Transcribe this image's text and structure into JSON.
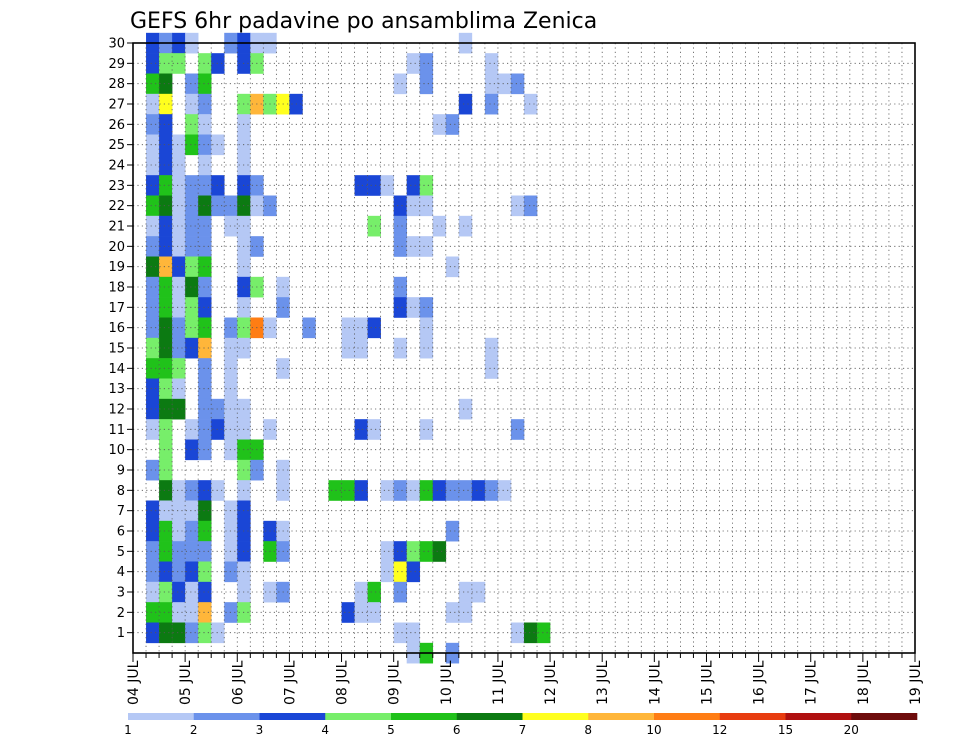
{
  "chart_data": {
    "type": "heatmap",
    "title": "GEFS 6hr padavine po ansamblima Zenica",
    "x_labels": [
      "04 JUL",
      "05 JUL",
      "06 JUL",
      "07 JUL",
      "08 JUL",
      "09 JUL",
      "10 JUL",
      "11 JUL",
      "12 JUL",
      "13 JUL",
      "14 JUL",
      "15 JUL",
      "16 JUL",
      "17 JUL",
      "18 JUL",
      "19 JUL"
    ],
    "y_labels": [
      "1",
      "2",
      "3",
      "4",
      "5",
      "6",
      "7",
      "8",
      "9",
      "10",
      "11",
      "12",
      "13",
      "14",
      "15",
      "16",
      "17",
      "18",
      "19",
      "20",
      "21",
      "22",
      "23",
      "24",
      "25",
      "26",
      "27",
      "28",
      "29",
      "30"
    ],
    "xlim": [
      0,
      60
    ],
    "ylim": [
      0,
      30
    ],
    "grid": true,
    "colorbar": {
      "labels": [
        "1",
        "2",
        "3",
        "4",
        "5",
        "6",
        "7",
        "8",
        "10",
        "12",
        "15",
        "20"
      ],
      "colors": [
        "#b5c8f5",
        "#6b92eb",
        "#1a46d6",
        "#77ee6a",
        "#20c21a",
        "#0c7a12",
        "#ffff1f",
        "#ffb63a",
        "#ff7d14",
        "#e83c10",
        "#b01010",
        "#6e0c0c"
      ]
    },
    "cells": [
      [
        1,
        30,
        3
      ],
      [
        2,
        30,
        2
      ],
      [
        3,
        30,
        3
      ],
      [
        4,
        30,
        1
      ],
      [
        7,
        30,
        2
      ],
      [
        8,
        30,
        3
      ],
      [
        9,
        30,
        1
      ],
      [
        10,
        30,
        1
      ],
      [
        25,
        30,
        1
      ],
      [
        1,
        29,
        3
      ],
      [
        2,
        29,
        4
      ],
      [
        3,
        29,
        4
      ],
      [
        5,
        29,
        4
      ],
      [
        6,
        29,
        3
      ],
      [
        8,
        29,
        3
      ],
      [
        9,
        29,
        4
      ],
      [
        21,
        29,
        1
      ],
      [
        22,
        29,
        2
      ],
      [
        27,
        29,
        1
      ],
      [
        1,
        28,
        5
      ],
      [
        2,
        28,
        6
      ],
      [
        4,
        28,
        2
      ],
      [
        5,
        28,
        5
      ],
      [
        20,
        28,
        1
      ],
      [
        22,
        28,
        2
      ],
      [
        27,
        28,
        1
      ],
      [
        28,
        28,
        1
      ],
      [
        29,
        28,
        2
      ],
      [
        1,
        27,
        1
      ],
      [
        2,
        27,
        7
      ],
      [
        4,
        27,
        1
      ],
      [
        5,
        27,
        2
      ],
      [
        8,
        27,
        4
      ],
      [
        9,
        27,
        8
      ],
      [
        10,
        27,
        4
      ],
      [
        11,
        27,
        7
      ],
      [
        12,
        27,
        3
      ],
      [
        25,
        27,
        3
      ],
      [
        27,
        27,
        2
      ],
      [
        30,
        27,
        1
      ],
      [
        1,
        26,
        2
      ],
      [
        2,
        26,
        3
      ],
      [
        4,
        26,
        4
      ],
      [
        5,
        26,
        1
      ],
      [
        8,
        26,
        1
      ],
      [
        23,
        26,
        1
      ],
      [
        24,
        26,
        2
      ],
      [
        1,
        25,
        1
      ],
      [
        2,
        25,
        3
      ],
      [
        3,
        25,
        1
      ],
      [
        4,
        25,
        5
      ],
      [
        5,
        25,
        2
      ],
      [
        6,
        25,
        1
      ],
      [
        8,
        25,
        1
      ],
      [
        1,
        24,
        1
      ],
      [
        2,
        24,
        3
      ],
      [
        3,
        24,
        1
      ],
      [
        5,
        24,
        1
      ],
      [
        8,
        24,
        1
      ],
      [
        1,
        23,
        3
      ],
      [
        2,
        23,
        5
      ],
      [
        3,
        23,
        1
      ],
      [
        4,
        23,
        2
      ],
      [
        5,
        23,
        2
      ],
      [
        6,
        23,
        3
      ],
      [
        8,
        23,
        3
      ],
      [
        9,
        23,
        2
      ],
      [
        17,
        23,
        3
      ],
      [
        18,
        23,
        3
      ],
      [
        19,
        23,
        1
      ],
      [
        21,
        23,
        3
      ],
      [
        22,
        23,
        4
      ],
      [
        1,
        22,
        5
      ],
      [
        2,
        22,
        6
      ],
      [
        3,
        22,
        1
      ],
      [
        4,
        22,
        2
      ],
      [
        5,
        22,
        6
      ],
      [
        6,
        22,
        2
      ],
      [
        7,
        22,
        2
      ],
      [
        8,
        22,
        6
      ],
      [
        9,
        22,
        1
      ],
      [
        10,
        22,
        2
      ],
      [
        20,
        22,
        3
      ],
      [
        21,
        22,
        1
      ],
      [
        22,
        22,
        1
      ],
      [
        29,
        22,
        1
      ],
      [
        30,
        22,
        2
      ],
      [
        1,
        21,
        1
      ],
      [
        2,
        21,
        3
      ],
      [
        3,
        21,
        1
      ],
      [
        4,
        21,
        2
      ],
      [
        5,
        21,
        2
      ],
      [
        7,
        21,
        1
      ],
      [
        8,
        21,
        1
      ],
      [
        18,
        21,
        4
      ],
      [
        20,
        21,
        2
      ],
      [
        23,
        21,
        1
      ],
      [
        25,
        21,
        1
      ],
      [
        1,
        20,
        2
      ],
      [
        2,
        20,
        3
      ],
      [
        3,
        20,
        1
      ],
      [
        4,
        20,
        2
      ],
      [
        5,
        20,
        2
      ],
      [
        8,
        20,
        1
      ],
      [
        9,
        20,
        2
      ],
      [
        20,
        20,
        2
      ],
      [
        21,
        20,
        1
      ],
      [
        22,
        20,
        1
      ],
      [
        1,
        19,
        6
      ],
      [
        2,
        19,
        8
      ],
      [
        3,
        19,
        3
      ],
      [
        4,
        19,
        4
      ],
      [
        5,
        19,
        5
      ],
      [
        8,
        19,
        1
      ],
      [
        24,
        19,
        1
      ],
      [
        1,
        18,
        2
      ],
      [
        2,
        18,
        5
      ],
      [
        3,
        18,
        1
      ],
      [
        4,
        18,
        6
      ],
      [
        5,
        18,
        2
      ],
      [
        8,
        18,
        3
      ],
      [
        9,
        18,
        4
      ],
      [
        11,
        18,
        1
      ],
      [
        20,
        18,
        2
      ],
      [
        1,
        17,
        2
      ],
      [
        2,
        17,
        5
      ],
      [
        3,
        17,
        1
      ],
      [
        4,
        17,
        4
      ],
      [
        5,
        17,
        3
      ],
      [
        8,
        17,
        1
      ],
      [
        11,
        17,
        2
      ],
      [
        20,
        17,
        3
      ],
      [
        21,
        17,
        1
      ],
      [
        22,
        17,
        2
      ],
      [
        1,
        16,
        2
      ],
      [
        2,
        16,
        6
      ],
      [
        3,
        16,
        2
      ],
      [
        4,
        16,
        4
      ],
      [
        5,
        16,
        5
      ],
      [
        7,
        16,
        2
      ],
      [
        8,
        16,
        4
      ],
      [
        9,
        16,
        9
      ],
      [
        10,
        16,
        1
      ],
      [
        13,
        16,
        2
      ],
      [
        16,
        16,
        1
      ],
      [
        17,
        16,
        1
      ],
      [
        18,
        16,
        3
      ],
      [
        22,
        16,
        1
      ],
      [
        1,
        15,
        4
      ],
      [
        2,
        15,
        6
      ],
      [
        3,
        15,
        2
      ],
      [
        4,
        15,
        3
      ],
      [
        5,
        15,
        8
      ],
      [
        7,
        15,
        1
      ],
      [
        8,
        15,
        1
      ],
      [
        16,
        15,
        1
      ],
      [
        17,
        15,
        1
      ],
      [
        20,
        15,
        1
      ],
      [
        22,
        15,
        1
      ],
      [
        27,
        15,
        1
      ],
      [
        1,
        14,
        5
      ],
      [
        2,
        14,
        5
      ],
      [
        3,
        14,
        4
      ],
      [
        5,
        14,
        2
      ],
      [
        7,
        14,
        1
      ],
      [
        11,
        14,
        1
      ],
      [
        27,
        14,
        1
      ],
      [
        1,
        13,
        3
      ],
      [
        2,
        13,
        4
      ],
      [
        3,
        13,
        1
      ],
      [
        5,
        13,
        2
      ],
      [
        7,
        13,
        1
      ],
      [
        1,
        12,
        3
      ],
      [
        2,
        12,
        6
      ],
      [
        3,
        12,
        6
      ],
      [
        5,
        12,
        2
      ],
      [
        6,
        12,
        2
      ],
      [
        7,
        12,
        1
      ],
      [
        8,
        12,
        1
      ],
      [
        25,
        12,
        1
      ],
      [
        1,
        11,
        1
      ],
      [
        2,
        11,
        4
      ],
      [
        4,
        11,
        1
      ],
      [
        5,
        11,
        2
      ],
      [
        6,
        11,
        3
      ],
      [
        7,
        11,
        1
      ],
      [
        8,
        11,
        1
      ],
      [
        10,
        11,
        1
      ],
      [
        17,
        11,
        3
      ],
      [
        18,
        11,
        1
      ],
      [
        22,
        11,
        1
      ],
      [
        29,
        11,
        2
      ],
      [
        2,
        10,
        4
      ],
      [
        4,
        10,
        3
      ],
      [
        5,
        10,
        2
      ],
      [
        7,
        10,
        1
      ],
      [
        8,
        10,
        5
      ],
      [
        9,
        10,
        5
      ],
      [
        1,
        9,
        2
      ],
      [
        2,
        9,
        4
      ],
      [
        8,
        9,
        4
      ],
      [
        9,
        9,
        2
      ],
      [
        11,
        9,
        1
      ],
      [
        2,
        8,
        6
      ],
      [
        3,
        8,
        1
      ],
      [
        4,
        8,
        2
      ],
      [
        5,
        8,
        3
      ],
      [
        6,
        8,
        1
      ],
      [
        8,
        8,
        1
      ],
      [
        11,
        8,
        1
      ],
      [
        15,
        8,
        5
      ],
      [
        16,
        8,
        5
      ],
      [
        17,
        8,
        3
      ],
      [
        19,
        8,
        1
      ],
      [
        20,
        8,
        2
      ],
      [
        21,
        8,
        1
      ],
      [
        22,
        8,
        5
      ],
      [
        23,
        8,
        3
      ],
      [
        24,
        8,
        2
      ],
      [
        25,
        8,
        2
      ],
      [
        26,
        8,
        3
      ],
      [
        27,
        8,
        2
      ],
      [
        28,
        8,
        1
      ],
      [
        1,
        7,
        3
      ],
      [
        2,
        7,
        1
      ],
      [
        3,
        7,
        1
      ],
      [
        4,
        7,
        1
      ],
      [
        5,
        7,
        6
      ],
      [
        7,
        7,
        1
      ],
      [
        8,
        7,
        3
      ],
      [
        1,
        6,
        3
      ],
      [
        2,
        6,
        5
      ],
      [
        3,
        6,
        1
      ],
      [
        4,
        6,
        2
      ],
      [
        5,
        6,
        5
      ],
      [
        7,
        6,
        1
      ],
      [
        8,
        6,
        3
      ],
      [
        10,
        6,
        3
      ],
      [
        11,
        6,
        1
      ],
      [
        24,
        6,
        2
      ],
      [
        1,
        5,
        2
      ],
      [
        2,
        5,
        5
      ],
      [
        3,
        5,
        2
      ],
      [
        4,
        5,
        2
      ],
      [
        5,
        5,
        2
      ],
      [
        7,
        5,
        1
      ],
      [
        8,
        5,
        3
      ],
      [
        10,
        5,
        5
      ],
      [
        11,
        5,
        2
      ],
      [
        19,
        5,
        1
      ],
      [
        20,
        5,
        3
      ],
      [
        21,
        5,
        4
      ],
      [
        22,
        5,
        5
      ],
      [
        23,
        5,
        6
      ],
      [
        1,
        4,
        2
      ],
      [
        2,
        4,
        3
      ],
      [
        3,
        4,
        2
      ],
      [
        4,
        4,
        3
      ],
      [
        5,
        4,
        4
      ],
      [
        7,
        4,
        2
      ],
      [
        8,
        4,
        1
      ],
      [
        19,
        4,
        1
      ],
      [
        20,
        4,
        7
      ],
      [
        21,
        4,
        3
      ],
      [
        1,
        3,
        1
      ],
      [
        2,
        3,
        4
      ],
      [
        3,
        3,
        3
      ],
      [
        4,
        3,
        1
      ],
      [
        5,
        3,
        3
      ],
      [
        8,
        3,
        1
      ],
      [
        10,
        3,
        1
      ],
      [
        11,
        3,
        2
      ],
      [
        17,
        3,
        1
      ],
      [
        18,
        3,
        5
      ],
      [
        20,
        3,
        2
      ],
      [
        25,
        3,
        1
      ],
      [
        26,
        3,
        1
      ],
      [
        1,
        2,
        5
      ],
      [
        2,
        2,
        5
      ],
      [
        3,
        2,
        1
      ],
      [
        4,
        2,
        1
      ],
      [
        5,
        2,
        8
      ],
      [
        7,
        2,
        2
      ],
      [
        8,
        2,
        4
      ],
      [
        16,
        2,
        3
      ],
      [
        17,
        2,
        1
      ],
      [
        18,
        2,
        1
      ],
      [
        24,
        2,
        1
      ],
      [
        25,
        2,
        1
      ],
      [
        1,
        1,
        3
      ],
      [
        2,
        1,
        6
      ],
      [
        3,
        1,
        6
      ],
      [
        4,
        1,
        2
      ],
      [
        5,
        1,
        4
      ],
      [
        6,
        1,
        1
      ],
      [
        20,
        1,
        1
      ],
      [
        21,
        1,
        1
      ],
      [
        29,
        1,
        1
      ],
      [
        30,
        1,
        6
      ],
      [
        31,
        1,
        5
      ],
      [
        21,
        0,
        1
      ],
      [
        22,
        0,
        5
      ],
      [
        24,
        0,
        2
      ]
    ]
  }
}
